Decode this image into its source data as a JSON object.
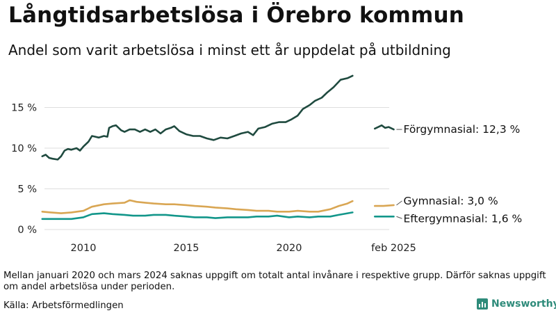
{
  "header": {
    "title": "Långtidsarbetslösa i Örebro kommun",
    "subtitle": "Andel som varit arbetslösa i minst ett år uppdelat på utbildning"
  },
  "footer": {
    "note": "Mellan januari 2020 och mars 2024 saknas uppgift om totalt antal invånare i respektive grupp. Därför saknas uppgift om andel arbetslösa under perioden.",
    "source": "Källa: Arbetsförmedlingen",
    "brand": "Newsworthy"
  },
  "colors": {
    "forgymnasial": "#1f4a3f",
    "gymnasial": "#d9a653",
    "eftergymnasial": "#12968a",
    "grid": "#dddddd"
  },
  "chart_data": {
    "type": "line",
    "title": "Långtidsarbetslösa i Örebro kommun",
    "subtitle": "Andel som varit arbetslösa i minst ett år uppdelat på utbildning",
    "y_unit": "%",
    "ylim": [
      0,
      19
    ],
    "y_ticks": [
      0,
      5,
      10,
      15
    ],
    "y_tick_labels": [
      "0 %",
      "5 %",
      "10 %",
      "15 %"
    ],
    "x_ticks": [
      2010,
      2015,
      2020,
      "2025-02"
    ],
    "x_tick_labels": [
      "2010",
      "2015",
      "2020",
      "feb 2025"
    ],
    "grid": true,
    "legend": "direct labels at right",
    "series": [
      {
        "key": "forgymnasial",
        "name": "Förgymnasial",
        "end_label": "Förgymnasial: 12,3 %",
        "segments": [
          [
            [
              "2008-01",
              9.0
            ],
            [
              "2008-03",
              9.2
            ],
            [
              "2008-05",
              8.8
            ],
            [
              "2008-07",
              8.7
            ],
            [
              "2008-10",
              8.6
            ],
            [
              "2008-12",
              9.0
            ],
            [
              "2009-02",
              9.7
            ],
            [
              "2009-04",
              9.9
            ],
            [
              "2009-06",
              9.8
            ],
            [
              "2009-09",
              10.0
            ],
            [
              "2009-11",
              9.7
            ],
            [
              "2010-01",
              10.2
            ],
            [
              "2010-04",
              10.8
            ],
            [
              "2010-06",
              11.5
            ],
            [
              "2010-08",
              11.4
            ],
            [
              "2010-10",
              11.3
            ],
            [
              "2011-01",
              11.5
            ],
            [
              "2011-03",
              11.4
            ],
            [
              "2011-04",
              12.5
            ],
            [
              "2011-06",
              12.7
            ],
            [
              "2011-08",
              12.8
            ],
            [
              "2011-11",
              12.2
            ],
            [
              "2012-01",
              12.0
            ],
            [
              "2012-04",
              12.3
            ],
            [
              "2012-07",
              12.3
            ],
            [
              "2012-10",
              12.0
            ],
            [
              "2013-01",
              12.3
            ],
            [
              "2013-04",
              12.0
            ],
            [
              "2013-07",
              12.3
            ],
            [
              "2013-10",
              11.8
            ],
            [
              "2014-01",
              12.3
            ],
            [
              "2014-04",
              12.5
            ],
            [
              "2014-06",
              12.7
            ],
            [
              "2014-09",
              12.1
            ],
            [
              "2015-01",
              11.7
            ],
            [
              "2015-05",
              11.5
            ],
            [
              "2015-09",
              11.5
            ],
            [
              "2016-01",
              11.2
            ],
            [
              "2016-05",
              11.0
            ],
            [
              "2016-09",
              11.3
            ],
            [
              "2017-01",
              11.2
            ],
            [
              "2017-05",
              11.5
            ],
            [
              "2017-09",
              11.8
            ],
            [
              "2018-01",
              12.0
            ],
            [
              "2018-04",
              11.6
            ],
            [
              "2018-07",
              12.4
            ],
            [
              "2018-11",
              12.6
            ],
            [
              "2019-03",
              13.0
            ],
            [
              "2019-07",
              13.2
            ],
            [
              "2019-11",
              13.2
            ],
            [
              "2020-02",
              13.5
            ],
            [
              "2020-06",
              14.0
            ],
            [
              "2020-09",
              14.8
            ],
            [
              "2021-01",
              15.3
            ],
            [
              "2021-04",
              15.8
            ],
            [
              "2021-08",
              16.2
            ],
            [
              "2021-11",
              16.8
            ],
            [
              "2022-03",
              17.5
            ],
            [
              "2022-07",
              18.4
            ],
            [
              "2022-11",
              18.6
            ],
            [
              "2023-02",
              18.9
            ]
          ],
          [
            [
              "2024-03",
              12.4
            ],
            [
              "2024-05",
              12.6
            ],
            [
              "2024-07",
              12.8
            ],
            [
              "2024-09",
              12.5
            ],
            [
              "2024-11",
              12.6
            ],
            [
              "2025-02",
              12.3
            ]
          ]
        ]
      },
      {
        "key": "gymnasial",
        "name": "Gymnasial",
        "end_label": "Gymnasial:  3,0 %",
        "segments": [
          [
            [
              "2008-01",
              2.2
            ],
            [
              "2008-06",
              2.1
            ],
            [
              "2008-12",
              2.0
            ],
            [
              "2009-06",
              2.1
            ],
            [
              "2010-01",
              2.3
            ],
            [
              "2010-06",
              2.8
            ],
            [
              "2011-01",
              3.1
            ],
            [
              "2011-06",
              3.2
            ],
            [
              "2012-01",
              3.3
            ],
            [
              "2012-04",
              3.6
            ],
            [
              "2012-08",
              3.4
            ],
            [
              "2013-01",
              3.3
            ],
            [
              "2013-06",
              3.2
            ],
            [
              "2014-01",
              3.1
            ],
            [
              "2014-06",
              3.1
            ],
            [
              "2015-01",
              3.0
            ],
            [
              "2015-06",
              2.9
            ],
            [
              "2016-01",
              2.8
            ],
            [
              "2016-06",
              2.7
            ],
            [
              "2017-01",
              2.6
            ],
            [
              "2017-06",
              2.5
            ],
            [
              "2018-01",
              2.4
            ],
            [
              "2018-06",
              2.3
            ],
            [
              "2019-01",
              2.3
            ],
            [
              "2019-06",
              2.2
            ],
            [
              "2020-01",
              2.2
            ],
            [
              "2020-06",
              2.3
            ],
            [
              "2021-01",
              2.2
            ],
            [
              "2021-06",
              2.2
            ],
            [
              "2022-01",
              2.5
            ],
            [
              "2022-06",
              2.9
            ],
            [
              "2022-11",
              3.2
            ],
            [
              "2023-02",
              3.5
            ]
          ],
          [
            [
              "2024-03",
              2.9
            ],
            [
              "2024-08",
              2.9
            ],
            [
              "2025-02",
              3.0
            ]
          ]
        ]
      },
      {
        "key": "eftergymnasial",
        "name": "Eftergymnasial",
        "end_label": "Eftergymnasial:  1,6 %",
        "segments": [
          [
            [
              "2008-01",
              1.3
            ],
            [
              "2008-06",
              1.3
            ],
            [
              "2009-01",
              1.3
            ],
            [
              "2009-06",
              1.3
            ],
            [
              "2010-01",
              1.5
            ],
            [
              "2010-06",
              1.9
            ],
            [
              "2011-01",
              2.0
            ],
            [
              "2011-06",
              1.9
            ],
            [
              "2012-01",
              1.8
            ],
            [
              "2012-06",
              1.7
            ],
            [
              "2013-01",
              1.7
            ],
            [
              "2013-06",
              1.8
            ],
            [
              "2014-01",
              1.8
            ],
            [
              "2014-06",
              1.7
            ],
            [
              "2015-01",
              1.6
            ],
            [
              "2015-06",
              1.5
            ],
            [
              "2016-01",
              1.5
            ],
            [
              "2016-06",
              1.4
            ],
            [
              "2017-01",
              1.5
            ],
            [
              "2017-06",
              1.5
            ],
            [
              "2018-01",
              1.5
            ],
            [
              "2018-06",
              1.6
            ],
            [
              "2019-01",
              1.6
            ],
            [
              "2019-06",
              1.7
            ],
            [
              "2020-01",
              1.5
            ],
            [
              "2020-06",
              1.6
            ],
            [
              "2021-01",
              1.5
            ],
            [
              "2021-06",
              1.6
            ],
            [
              "2022-01",
              1.6
            ],
            [
              "2022-06",
              1.8
            ],
            [
              "2023-02",
              2.1
            ]
          ],
          [
            [
              "2024-03",
              1.6
            ],
            [
              "2024-08",
              1.6
            ],
            [
              "2025-02",
              1.6
            ]
          ]
        ]
      }
    ]
  }
}
